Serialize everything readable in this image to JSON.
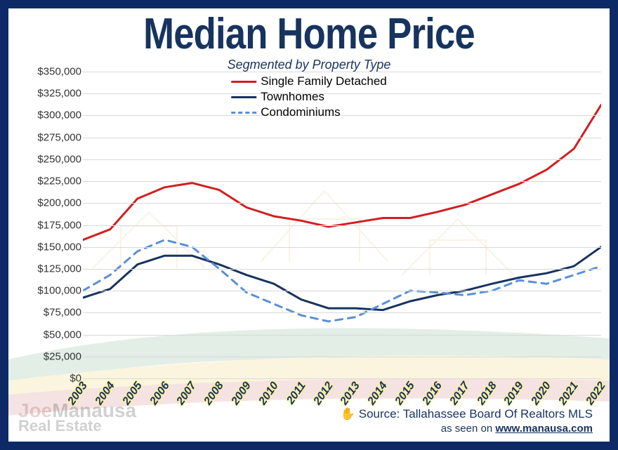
{
  "frame_color": "#0d2a66",
  "title": {
    "text": "Median Home Price",
    "color": "#17335f",
    "fontsize": 62
  },
  "subtitle": {
    "text": "Segmented by Property Type",
    "color": "#17335f",
    "fontsize": 18
  },
  "legend": [
    {
      "label": "Single Family Detached",
      "color": "#d11f1f",
      "dash": "solid",
      "width": 3
    },
    {
      "label": "Townhomes",
      "color": "#17335f",
      "dash": "solid",
      "width": 3
    },
    {
      "label": "Condominiums",
      "color": "#5a8fd6",
      "dash": "dashed",
      "width": 3
    }
  ],
  "chart": {
    "type": "line",
    "background_color": "#ffffff",
    "grid_color": "#d9d9d9",
    "y": {
      "min": 0,
      "max": 350000,
      "step": 25000,
      "format": "currency",
      "labels": [
        "$0",
        "$25,000",
        "$50,000",
        "$75,000",
        "$100,000",
        "$125,000",
        "$150,000",
        "$175,000",
        "$200,000",
        "$225,000",
        "$250,000",
        "$275,000",
        "$300,000",
        "$325,000",
        "$350,000"
      ]
    },
    "x": {
      "categories": [
        "2003",
        "2004",
        "2005",
        "2006",
        "2007",
        "2008",
        "2009",
        "2010",
        "2011",
        "2012",
        "2013",
        "2014",
        "2015",
        "2016",
        "2017",
        "2018",
        "2019",
        "2020",
        "2021",
        "2022"
      ],
      "label_color": "#17335f",
      "label_glow": "#fff47a",
      "label_fontsize": 16,
      "rotation_deg": -55
    },
    "series": [
      {
        "name": "Single Family Detached",
        "color": "#d11f1f",
        "dash": "solid",
        "width": 3,
        "values": [
          158000,
          170000,
          205000,
          218000,
          223000,
          215000,
          195000,
          185000,
          180000,
          173000,
          178000,
          183000,
          183000,
          190000,
          198000,
          210000,
          222000,
          238000,
          262000,
          312000
        ]
      },
      {
        "name": "Townhomes",
        "color": "#17335f",
        "dash": "solid",
        "width": 3,
        "values": [
          92000,
          102000,
          130000,
          140000,
          140000,
          130000,
          118000,
          108000,
          90000,
          80000,
          80000,
          78000,
          88000,
          95000,
          100000,
          108000,
          115000,
          120000,
          128000,
          150000
        ]
      },
      {
        "name": "Condominiums",
        "color": "#5a8fd6",
        "dash": "dashed",
        "width": 3,
        "values": [
          100000,
          118000,
          145000,
          158000,
          150000,
          125000,
          98000,
          85000,
          72000,
          65000,
          70000,
          85000,
          100000,
          98000,
          95000,
          100000,
          112000,
          108000,
          118000,
          128000
        ]
      }
    ]
  },
  "attribution": {
    "hand_icon": "✋",
    "source_prefix": "Source: ",
    "source": "Tallahassee Board Of Realtors MLS",
    "seen_prefix": "as seen on ",
    "url": "www.manausa.com",
    "color": "#17335f"
  },
  "watermark": {
    "line1a": "Joe",
    "line1b": "Manausa",
    "line2": "Real Estate"
  }
}
